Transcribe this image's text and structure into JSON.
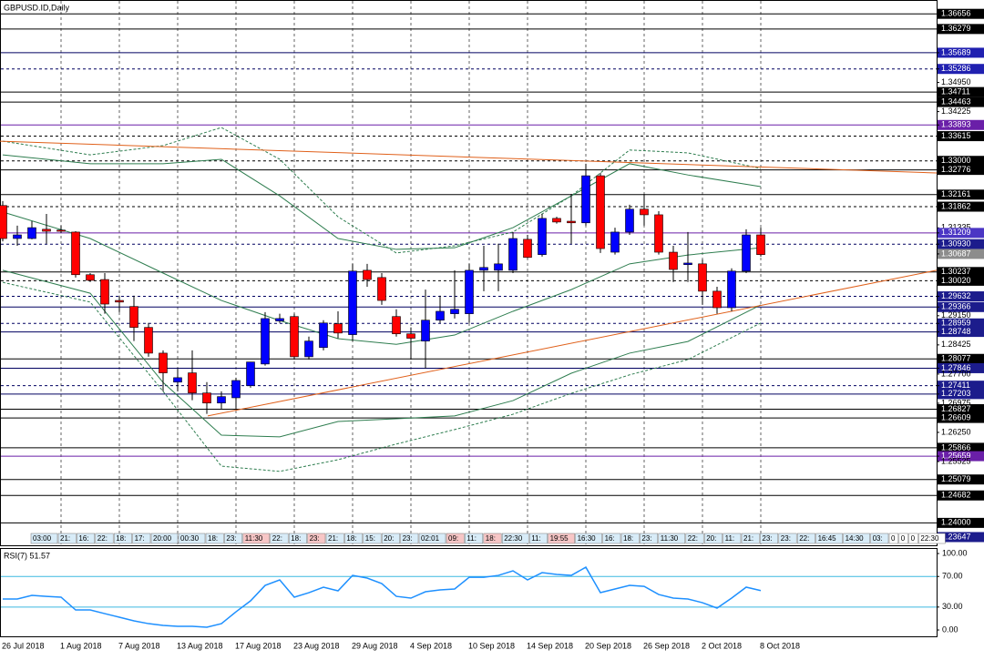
{
  "chart_data": [
    {
      "type": "candlestick",
      "title": "GBPUSD.ID,Daily",
      "categories": [
        "26 Jul 2018",
        null,
        null,
        null,
        "1 Aug 2018",
        null,
        null,
        null,
        "7 Aug 2018",
        null,
        null,
        null,
        "13 Aug 2018",
        null,
        null,
        null,
        "17 Aug 2018",
        null,
        null,
        null,
        "23 Aug 2018",
        null,
        null,
        null,
        "29 Aug 2018",
        null,
        null,
        null,
        "4 Sep 2018",
        null,
        null,
        null,
        "10 Sep 2018",
        null,
        null,
        null,
        "14 Sep 2018",
        null,
        null,
        null,
        "20 Sep 2018",
        null,
        null,
        null,
        "26 Sep 2018",
        null,
        null,
        null,
        "2 Oct 2018",
        null,
        null,
        null,
        "8 Oct 2018"
      ],
      "open": [
        1.3189,
        1.3107,
        1.3107,
        1.313,
        1.3128,
        1.3123,
        1.3017,
        1.3005,
        1.2953,
        1.2938,
        1.2886,
        1.2822,
        1.275,
        1.2773,
        1.2723,
        1.2698,
        1.2711,
        1.2741,
        1.2795,
        1.2902,
        1.2913,
        1.2813,
        1.2836,
        1.2895,
        1.2868,
        1.3028,
        1.301,
        1.2913,
        1.287,
        1.2852,
        1.2904,
        1.292,
        1.292,
        1.3028,
        1.3028,
        1.3028,
        1.3105,
        1.3067,
        1.3157,
        1.315,
        1.3146,
        1.3263,
        1.3073,
        1.3123,
        1.318,
        1.3166,
        1.3073,
        1.3042,
        1.3044,
        1.2976,
        1.2935,
        1.3026,
        1.3116
      ],
      "high": [
        1.32,
        1.3139,
        1.315,
        1.3168,
        1.3139,
        1.3125,
        1.3021,
        1.3021,
        1.2965,
        1.2965,
        1.2897,
        1.2829,
        1.2784,
        1.2829,
        1.275,
        1.2727,
        1.2761,
        1.28,
        1.2924,
        1.292,
        1.292,
        1.2863,
        1.2904,
        1.2926,
        1.3044,
        1.3044,
        1.3021,
        1.2931,
        1.2886,
        1.298,
        1.2965,
        1.3028,
        1.3044,
        1.3089,
        1.3094,
        1.3123,
        1.3116,
        1.3168,
        1.3161,
        1.3218,
        1.3293,
        1.327,
        1.3134,
        1.3191,
        1.3218,
        1.3175,
        1.3089,
        1.3123,
        1.3055,
        1.2987,
        1.3033,
        1.313,
        1.3134
      ],
      "low": [
        1.31,
        1.3089,
        1.3105,
        1.3094,
        1.3121,
        1.301,
        1.2999,
        1.292,
        1.2924,
        1.2852,
        1.2813,
        1.2727,
        1.2727,
        1.2705,
        1.2671,
        1.2684,
        1.2684,
        1.2736,
        1.2791,
        1.2897,
        1.2806,
        1.2806,
        1.2829,
        1.2859,
        1.2852,
        1.2987,
        1.2942,
        1.2863,
        1.2806,
        1.2784,
        1.2897,
        1.2908,
        1.2897,
        1.2976,
        1.2976,
        1.3021,
        1.3058,
        1.3062,
        1.3144,
        1.3094,
        1.3139,
        1.3071,
        1.3067,
        1.3116,
        1.3139,
        1.3067,
        1.2999,
        1.2999,
        1.2942,
        1.292,
        1.2926,
        1.3021,
        1.3062
      ],
      "close": [
        1.3107,
        1.3116,
        1.3134,
        1.3125,
        1.3125,
        1.3017,
        1.3003,
        1.2944,
        1.2949,
        1.2886,
        1.2822,
        1.2773,
        1.2761,
        1.2723,
        1.2698,
        1.2714,
        1.2754,
        1.28,
        1.2908,
        1.2908,
        1.2813,
        1.2852,
        1.2897,
        1.2872,
        1.3026,
        1.3005,
        1.2953,
        1.287,
        1.2859,
        1.2904,
        1.2926,
        1.2931,
        1.3028,
        1.3035,
        1.3044,
        1.3107,
        1.306,
        1.3157,
        1.3148,
        1.3146,
        1.3263,
        1.3082,
        1.3123,
        1.318,
        1.3166,
        1.3073,
        1.303,
        1.3046,
        1.2976,
        1.2935,
        1.3026,
        1.3116,
        1.3067
      ],
      "up_color": "#0000ff",
      "down_color": "#ff0000",
      "xlim": [
        -0.1875,
        64.0625
      ],
      "ylim": [
        1.2342,
        1.37
      ],
      "yticks": [
        1.36656,
        1.36279,
        1.35689,
        1.35286,
        {
          "value": 1.3495,
          "label": "1.34950"
        },
        1.34711,
        1.34463,
        1.34225,
        1.33893,
        1.33615,
        {
          "value": 1.33,
          "label": "1.33000"
        },
        1.32776,
        1.32161,
        1.31862,
        1.31335,
        1.31209,
        {
          "value": 1.3093,
          "label": "1.30930"
        },
        1.30687,
        1.30237,
        {
          "value": 1.3002,
          "label": "1.30020"
        },
        1.29632,
        1.29366,
        {
          "value": 1.2915,
          "label": "1.29150"
        },
        1.28959,
        1.28748,
        1.28425,
        1.28077,
        1.27846,
        {
          "value": 1.277,
          "label": "1.27700"
        },
        1.27411,
        1.27203,
        1.26975,
        1.26827,
        1.26609,
        {
          "value": 1.2625,
          "label": "1.26250"
        },
        1.25866,
        1.25659,
        1.25525,
        1.25079,
        1.24682,
        {
          "value": 1.24,
          "label": "1.24000"
        },
        1.23647
      ],
      "ytick_boxes": [
        "#000000",
        "#000000",
        "#2020b0",
        "#2020b0",
        null,
        "#000000",
        "#000000",
        null,
        "#6a1fa8",
        "#000000",
        "#000000",
        "#000000",
        "#000000",
        "#000000",
        null,
        "#4b36c4",
        "#1c1c8c",
        "#8c8c8c",
        "#000000",
        "#000000",
        "#1c1c8c",
        "#1c1c8c",
        null,
        "#1c1c8c",
        "#1c1c8c",
        null,
        "#000000",
        "#1c1c8c",
        null,
        "#1c1c8c",
        "#1c1c8c",
        null,
        "#000000",
        "#000000",
        null,
        "#000000",
        "#6a1fa8",
        null,
        "#000000",
        "#000000",
        "#000000",
        "#1c1c8c"
      ],
      "ytick_line_styles": [
        "solid",
        "solid",
        "solid",
        "dashed",
        null,
        "solid",
        "solid",
        null,
        "solid",
        "dashed",
        "dashed",
        "solid",
        "solid",
        "dashed",
        null,
        "solid",
        "dashed",
        null,
        "solid",
        "dashed",
        "dashed",
        "solid",
        null,
        "dashed",
        "solid",
        null,
        "solid",
        "solid",
        null,
        "dashed",
        "solid",
        null,
        "solid",
        "solid",
        null,
        "solid",
        "solid",
        null,
        "solid",
        "solid",
        "solid",
        null
      ],
      "ytick_line_colors": [
        "#000000",
        "#000000",
        "#000060",
        "#000060",
        null,
        "#000000",
        "#000000",
        null,
        "#6a1fa8",
        "#000000",
        "#000000",
        "#000000",
        "#000000",
        "#000000",
        null,
        "#6a1fa8",
        "#000060",
        null,
        "#000000",
        "#000000",
        "#000060",
        "#000060",
        null,
        "#000060",
        "#000060",
        null,
        "#000000",
        "#000060",
        null,
        "#000060",
        "#000060",
        null,
        "#000000",
        "#000000",
        null,
        "#000000",
        "#6a1fa8",
        null,
        "#000000",
        "#000000",
        "#000000",
        null
      ],
      "indicators": [
        {
          "color": "#2e7d4f",
          "dash": false,
          "x": [
            0,
            6,
            11,
            15,
            19,
            23,
            27,
            31,
            35,
            39,
            43,
            47,
            52
          ],
          "values": [
            1.3315,
            1.3293,
            1.3293,
            1.3304,
            1.3213,
            1.3107,
            1.308,
            1.3084,
            1.3134,
            1.3213,
            1.3293,
            1.3265,
            1.3236
          ]
        },
        {
          "color": "#2e7d4f",
          "dash": false,
          "x": [
            0,
            6,
            11,
            15,
            19,
            23,
            27,
            31,
            35,
            39,
            43,
            47,
            52
          ],
          "values": [
            1.3173,
            1.3107,
            1.3021,
            1.2953,
            1.2903,
            1.2858,
            1.2844,
            1.2867,
            1.2926,
            1.298,
            1.3044,
            1.3066,
            1.3084
          ]
        },
        {
          "color": "#2e7d4f",
          "dash": false,
          "x": [
            0,
            6,
            11,
            15,
            19,
            23,
            27,
            31,
            35,
            39,
            43,
            47,
            52
          ],
          "values": [
            1.3028,
            1.2971,
            1.2749,
            1.2618,
            1.2614,
            1.2652,
            1.2659,
            1.2666,
            1.2704,
            1.2772,
            1.2822,
            1.2851,
            1.2942
          ]
        },
        {
          "color": "#2e7d4f",
          "dash": true,
          "x": [
            0,
            6,
            11,
            15,
            19,
            23,
            27,
            31,
            35,
            39,
            43,
            47,
            52
          ],
          "values": [
            1.3349,
            1.3315,
            1.3338,
            1.3383,
            1.3304,
            1.3161,
            1.3071,
            1.3089,
            1.3123,
            1.3213,
            1.3327,
            1.332,
            1.3281
          ]
        },
        {
          "color": "#2e7d4f",
          "dash": true,
          "x": [
            0,
            6,
            11,
            15,
            19,
            23,
            27,
            31,
            35,
            39,
            43,
            47,
            52
          ],
          "values": [
            1.2998,
            1.2949,
            1.2727,
            1.2541,
            1.2528,
            1.2557,
            1.2596,
            1.2632,
            1.267,
            1.2722,
            1.2768,
            1.2806,
            1.2897
          ]
        }
      ],
      "trendlines": [
        {
          "color": "#e0601a",
          "x": [
            -0.1875,
            64.0625
          ],
          "values": [
            1.3349,
            1.327
          ]
        },
        {
          "color": "#e0601a",
          "x": [
            14.0625,
            64.0625
          ],
          "values": [
            1.2666,
            1.3028
          ]
        }
      ],
      "time_strip": [
        "03:00",
        "21:",
        "16:",
        "22:",
        "18:",
        "17:",
        "20:00",
        "00:30",
        "18:",
        "23:",
        "11:30",
        "22:",
        "18:",
        "23:",
        "21:",
        "18:",
        "15:",
        "20:",
        "23:",
        "02:01",
        "09:",
        "11:",
        "18:",
        "22:30",
        "11:",
        "19:55",
        "16:30",
        "16:",
        "18:",
        "23:",
        "11:30",
        "22:",
        "20:",
        "11:",
        "21:",
        "23:",
        "23:",
        "22:",
        "16:45",
        "14:30",
        "03:",
        "0",
        "0",
        "0",
        "22:30"
      ],
      "time_strip_colors": [
        "#d8ecf8",
        "#d8ecf8",
        "#d8ecf8",
        "#d8ecf8",
        "#d8ecf8",
        "#d8ecf8",
        "#d8ecf8",
        "#d8ecf8",
        "#d8ecf8",
        "#d8ecf8",
        "#f7c6c6",
        "#d8ecf8",
        "#d8ecf8",
        "#f7c6c6",
        "#d8ecf8",
        "#d8ecf8",
        "#d8ecf8",
        "#d8ecf8",
        "#d8ecf8",
        "#d8ecf8",
        "#f7c6c6",
        "#d8ecf8",
        "#f7c6c6",
        "#d8ecf8",
        "#d8ecf8",
        "#f7c6c6",
        "#d8ecf8",
        "#d8ecf8",
        "#d8ecf8",
        "#d8ecf8",
        "#d8ecf8",
        "#d8ecf8",
        "#d8ecf8",
        "#d8ecf8",
        "#d8ecf8",
        "#d8ecf8",
        "#d8ecf8",
        "#d8ecf8",
        "#d8ecf8",
        "#d8ecf8",
        "#d8ecf8",
        "#ffffff",
        "#ffffff",
        "#ffffff",
        "#ffffff"
      ]
    },
    {
      "type": "line",
      "title": "RSI(7) 51.57",
      "color": "#1e90ff",
      "values": [
        40.5,
        40.5,
        45.2,
        44.0,
        42.9,
        26.2,
        26.2,
        21.4,
        16.7,
        11.9,
        8.3,
        6.0,
        4.8,
        4.8,
        3.6,
        8.3,
        23.8,
        38.1,
        58.3,
        65.5,
        42.9,
        48.8,
        56.0,
        51.2,
        71.4,
        67.9,
        60.7,
        44.0,
        41.7,
        50.0,
        52.4,
        53.6,
        69.0,
        69.0,
        71.4,
        77.4,
        65.5,
        75.0,
        72.6,
        71.4,
        82.1,
        48.8,
        53.6,
        58.3,
        57.1,
        46.4,
        41.7,
        40.5,
        35.7,
        28.6,
        41.7,
        56.0,
        51.57
      ],
      "xlim": [
        -0.1875,
        64.0625
      ],
      "ylim": [
        -9.5,
        106
      ],
      "yticks": [
        {
          "value": 100,
          "label": "100.00"
        },
        {
          "value": 70,
          "label": "70.00"
        },
        {
          "value": 30,
          "label": "30.00"
        },
        {
          "value": 0,
          "label": "0.00"
        }
      ],
      "levels": [
        70,
        30
      ],
      "level_color": "#3cb8e0"
    }
  ]
}
